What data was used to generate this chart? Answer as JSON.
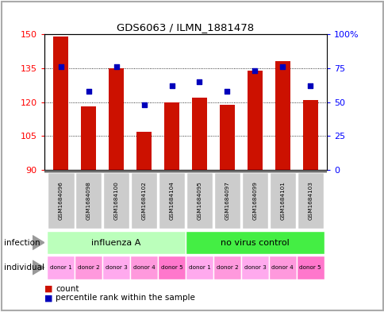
{
  "title": "GDS6063 / ILMN_1881478",
  "samples": [
    "GSM1684096",
    "GSM1684098",
    "GSM1684100",
    "GSM1684102",
    "GSM1684104",
    "GSM1684095",
    "GSM1684097",
    "GSM1684099",
    "GSM1684101",
    "GSM1684103"
  ],
  "counts": [
    149,
    118,
    135,
    107,
    120,
    122,
    119,
    134,
    138,
    121
  ],
  "percentiles": [
    76,
    58,
    76,
    48,
    62,
    65,
    58,
    73,
    76,
    62
  ],
  "ylim_left": [
    90,
    150
  ],
  "ylim_right": [
    0,
    100
  ],
  "yticks_left": [
    90,
    105,
    120,
    135,
    150
  ],
  "yticks_right": [
    0,
    25,
    50,
    75,
    100
  ],
  "yticklabels_right": [
    "0",
    "25",
    "50",
    "75",
    "100%"
  ],
  "bar_color": "#cc1100",
  "dot_color": "#0000bb",
  "infection_groups": [
    {
      "label": "influenza A",
      "start": 0,
      "end": 5,
      "color": "#bbffbb"
    },
    {
      "label": "no virus control",
      "start": 5,
      "end": 10,
      "color": "#44ee44"
    }
  ],
  "individual_labels": [
    "donor 1",
    "donor 2",
    "donor 3",
    "donor 4",
    "donor 5",
    "donor 1",
    "donor 2",
    "donor 3",
    "donor 4",
    "donor 5"
  ],
  "individual_colors": [
    "#ffaaee",
    "#ff99dd",
    "#ffaaee",
    "#ff99dd",
    "#ff77cc",
    "#ffaaee",
    "#ff99dd",
    "#ffaaee",
    "#ff99dd",
    "#ff77cc"
  ],
  "sample_box_color": "#cccccc",
  "infection_label": "infection",
  "individual_label_row": "individual",
  "legend_count": "count",
  "legend_pct": "percentile rank within the sample",
  "fig_border_color": "#888888"
}
